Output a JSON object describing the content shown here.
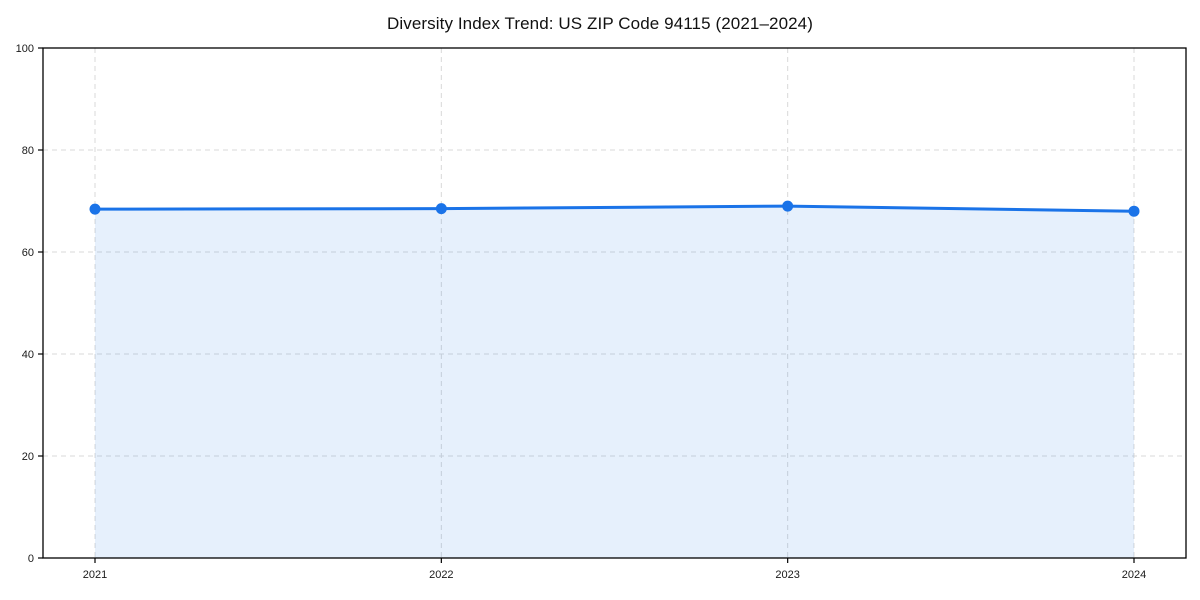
{
  "chart_data": {
    "type": "area",
    "title": "Diversity Index Trend: US ZIP Code 94115 (2021–2024)",
    "xlabel": "",
    "ylabel": "",
    "x": [
      "2021",
      "2022",
      "2023",
      "2024"
    ],
    "series": [
      {
        "name": "Diversity Index",
        "values": [
          68.4,
          68.5,
          69.0,
          68.0
        ]
      }
    ],
    "ylim": [
      0,
      100
    ],
    "yticks": [
      0,
      20,
      40,
      60,
      80,
      100
    ],
    "grid": "on",
    "grid_style": "dashed",
    "legend": "none",
    "colors": {
      "line": "#1a73e8",
      "marker": "#1a73e8",
      "fill_rgba": "rgba(26,115,232,0.11)",
      "grid": "#d9d9d9",
      "spine": "#000000",
      "tick_text": "#1a1a1a",
      "title_text": "#111111",
      "background": "#ffffff"
    }
  }
}
